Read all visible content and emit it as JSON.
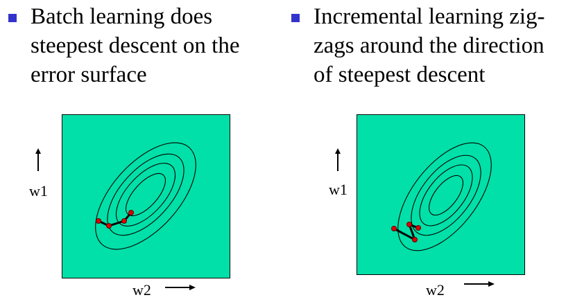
{
  "left": {
    "bullet_lines": [
      "Batch learning does",
      "steepest descent on the",
      "error surface"
    ],
    "ylabel": "w1",
    "xlabel": "w2"
  },
  "right": {
    "bullet_lines": [
      "Incremental learning zig-",
      "zags around the direction",
      "of steepest descent"
    ],
    "ylabel": "w1",
    "xlabel": "w2"
  },
  "colors": {
    "plot_bg": "#00e0a8",
    "bullet": "#3333cc",
    "point": "#e00000"
  }
}
